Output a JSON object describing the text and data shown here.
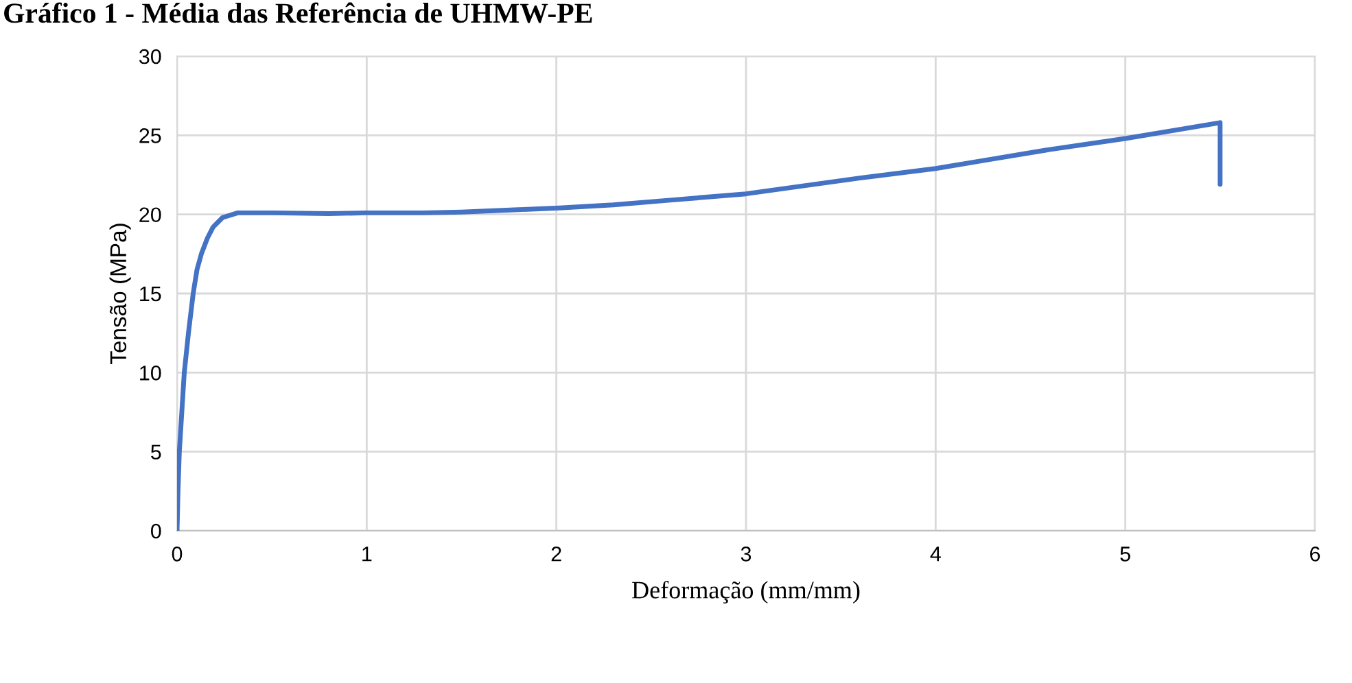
{
  "chart_data": {
    "type": "line",
    "title": "Gráfico 1 - Média das Referência de UHMW-PE",
    "xlabel": "Deformação (mm/mm)",
    "ylabel": "Tensão (MPa)",
    "series": [
      {
        "color": "#4472c4",
        "x": [
          0,
          0.005,
          0.012,
          0.025,
          0.038,
          0.06,
          0.085,
          0.105,
          0.128,
          0.16,
          0.19,
          0.24,
          0.32,
          0.5,
          0.8,
          1.0,
          1.3,
          1.5,
          1.8,
          2.0,
          2.3,
          2.6,
          3.0,
          3.3,
          3.6,
          4.0,
          4.3,
          4.6,
          5.0,
          5.3,
          5.5,
          5.5
        ],
        "values": [
          0,
          2.5,
          5,
          7.5,
          10,
          12.5,
          15,
          16.5,
          17.5,
          18.5,
          19.2,
          19.8,
          20.1,
          20.1,
          20.05,
          20.1,
          20.1,
          20.15,
          20.3,
          20.4,
          20.6,
          20.9,
          21.3,
          21.8,
          22.3,
          22.9,
          23.5,
          24.1,
          24.8,
          25.4,
          25.8,
          21.9
        ]
      }
    ],
    "xlim": [
      0,
      6
    ],
    "ylim": [
      0,
      30
    ],
    "xticks": [
      0,
      1,
      2,
      3,
      4,
      5,
      6
    ],
    "yticks": [
      0,
      5,
      10,
      15,
      20,
      25,
      30
    ],
    "grid": true,
    "marker": "none",
    "line_style": "solid"
  }
}
